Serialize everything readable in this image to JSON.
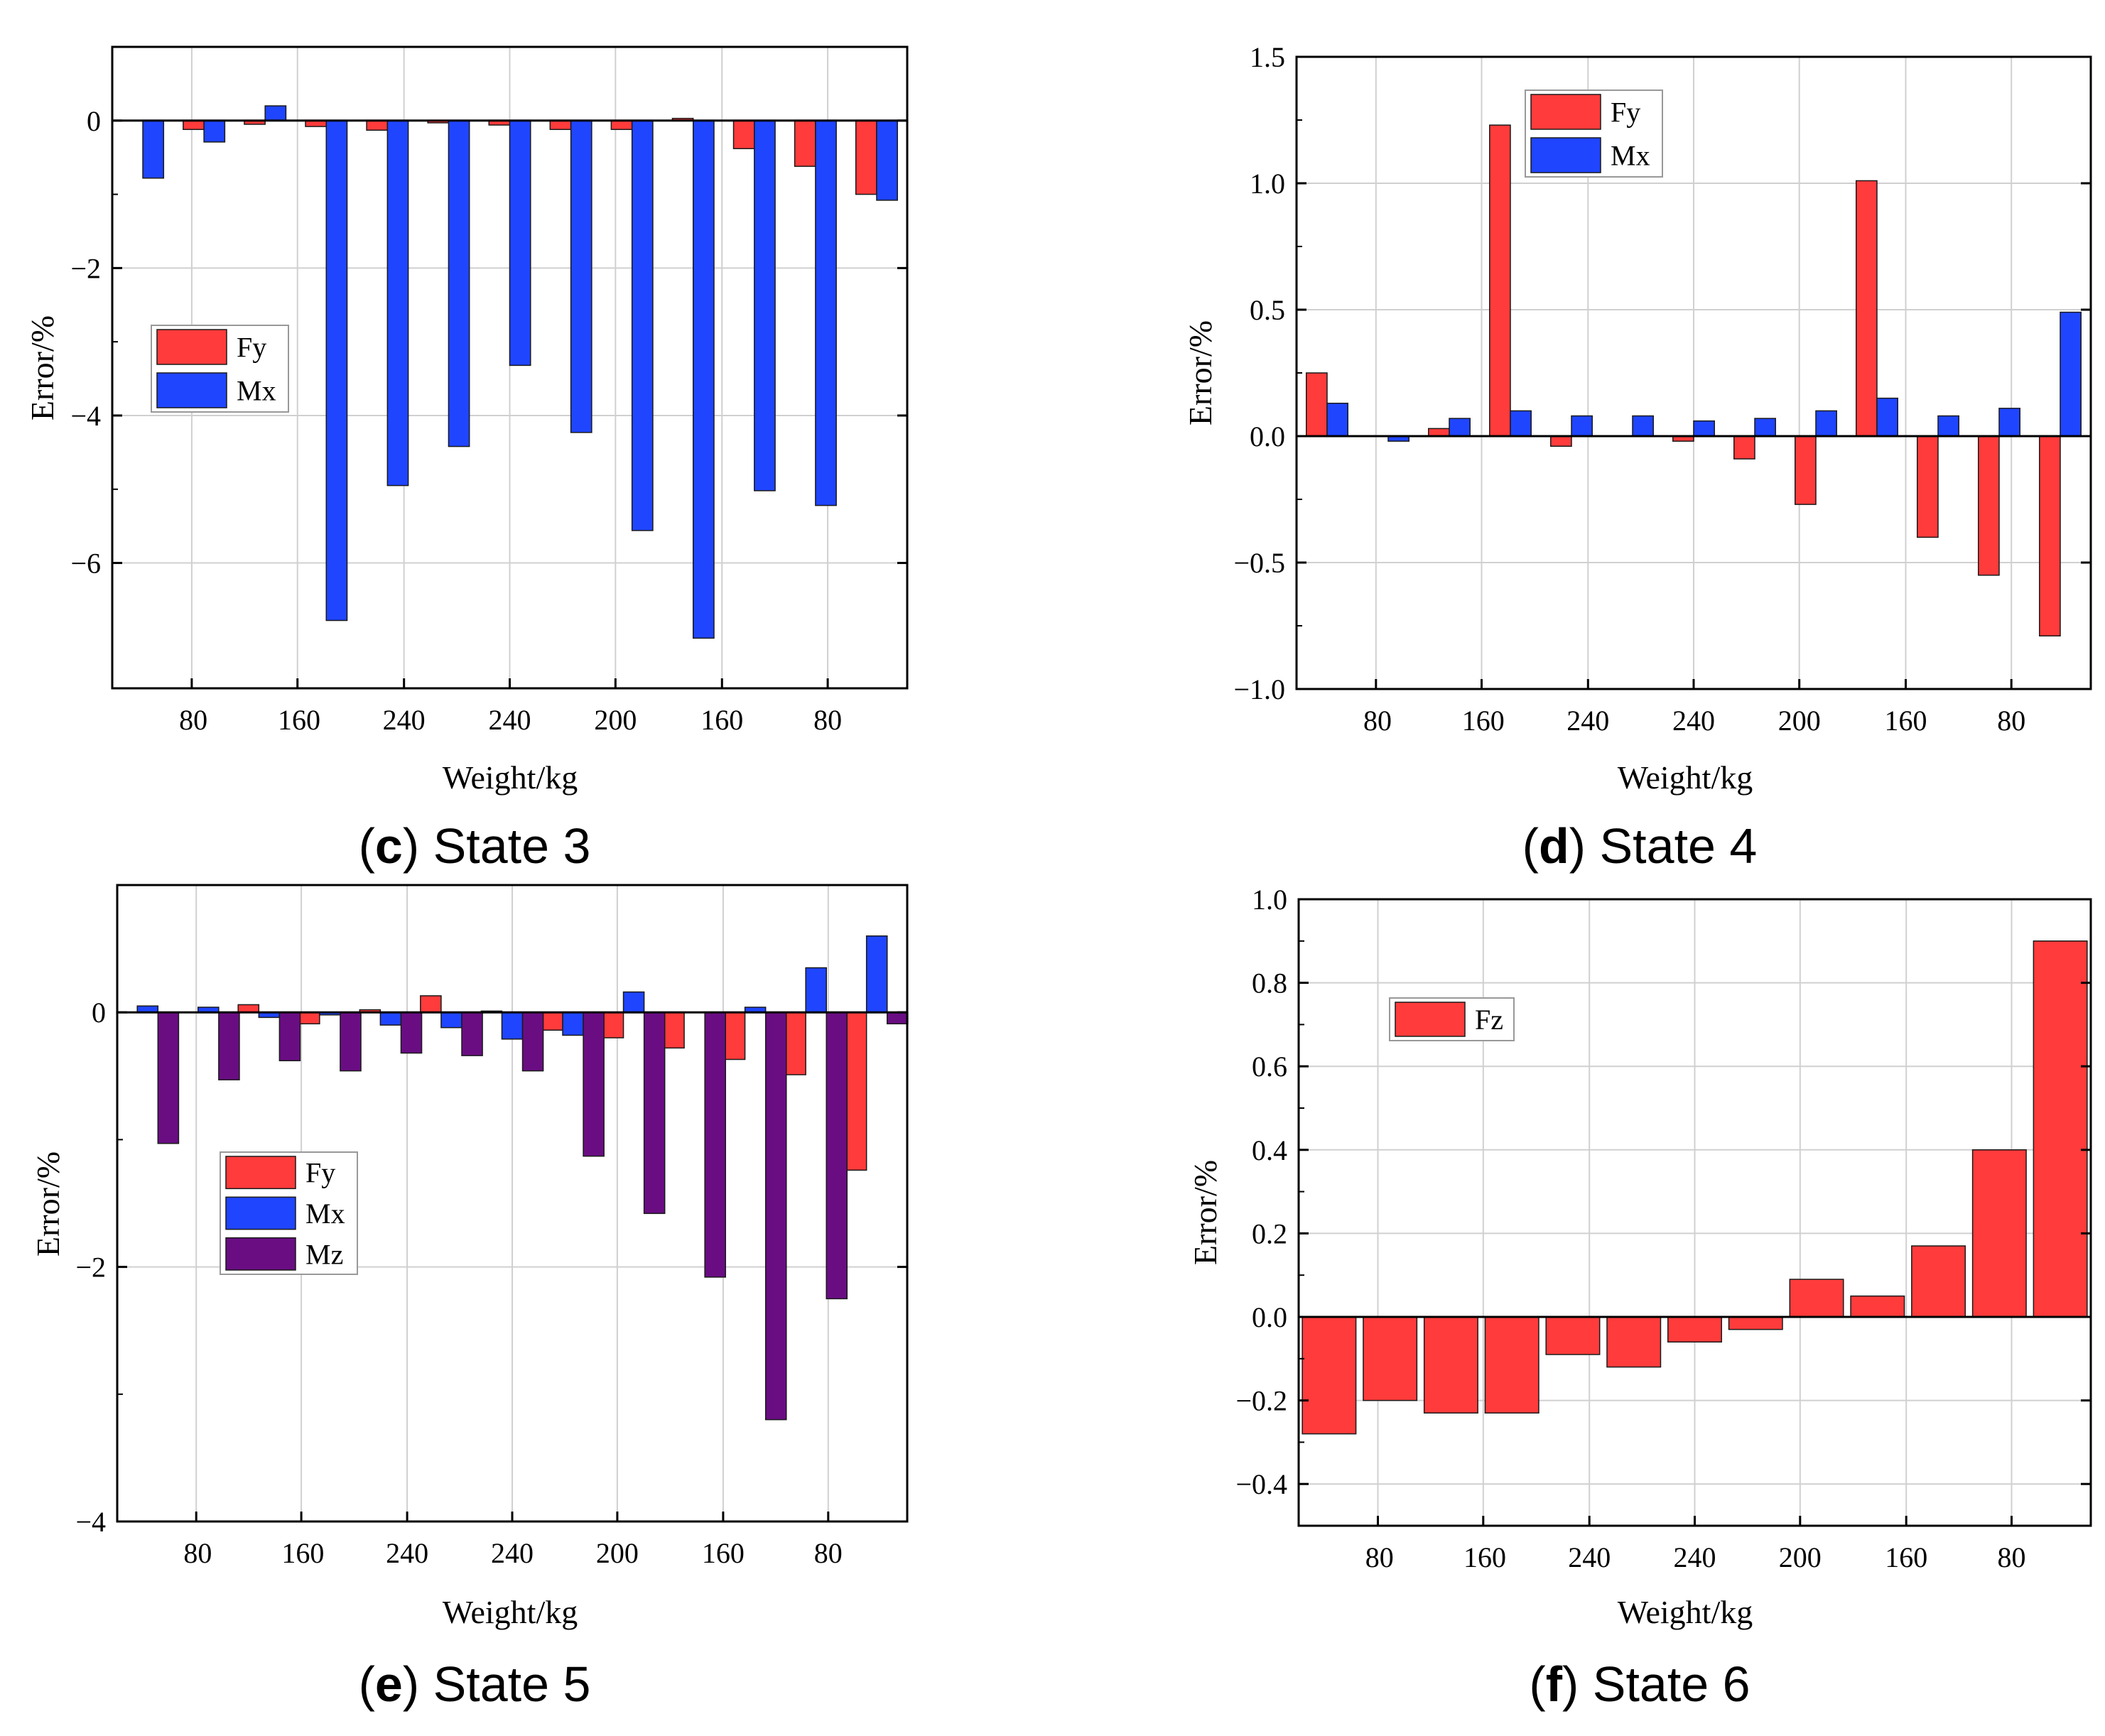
{
  "colors": {
    "Fy": "#ff3b3b",
    "Fz": "#ff3b3b",
    "Mx": "#1f45ff",
    "Mz": "#6a0d83",
    "axis": "#000000",
    "grid": "#d0d0d0"
  },
  "chart_data": [
    {
      "id": "c",
      "type": "bar",
      "title": "State 3",
      "caption": {
        "open": "(",
        "letter": "c",
        "close": ")",
        "text": " State 3"
      },
      "xlabel": "Weight/kg",
      "ylabel": "Error/%",
      "ylim": [
        -7.7,
        1.0
      ],
      "yticks": [
        0,
        -2,
        -4,
        -6
      ],
      "ytick_labels": [
        "0",
        "−2",
        "−4",
        "−6"
      ],
      "xtick_labels": [
        "80",
        "160",
        "240",
        "240",
        "200",
        "160",
        "80"
      ],
      "series": [
        {
          "name": "Fy",
          "values": [
            0,
            -0.12,
            -0.05,
            -0.08,
            -0.13,
            -0.03,
            -0.06,
            -0.12,
            -0.12,
            0.03,
            -0.38,
            -0.62,
            -1.0
          ]
        },
        {
          "name": "Mx",
          "values": [
            -0.78,
            -0.29,
            0.2,
            -6.78,
            -4.95,
            -4.42,
            -3.32,
            -4.23,
            -5.56,
            -7.02,
            -5.02,
            -5.22,
            -1.08
          ]
        }
      ],
      "legend": {
        "location": "center-left",
        "labels": [
          "Fy",
          "Mx"
        ]
      }
    },
    {
      "id": "d",
      "type": "bar",
      "title": "State 4",
      "caption": {
        "open": "(",
        "letter": "d",
        "close": ")",
        "text": " State 4"
      },
      "xlabel": "Weight/kg",
      "ylabel": "Error/%",
      "ylim": [
        -1.0,
        1.5
      ],
      "yticks": [
        1.5,
        1.0,
        0.5,
        0.0,
        -0.5,
        -1.0
      ],
      "ytick_labels": [
        "1.5",
        "1.0",
        "0.5",
        "0.0",
        "−0.5",
        "−1.0"
      ],
      "xtick_labels": [
        "80",
        "160",
        "240",
        "240",
        "200",
        "160",
        "80"
      ],
      "series": [
        {
          "name": "Fy",
          "values": [
            0.25,
            0,
            0.03,
            1.23,
            -0.04,
            0,
            -0.02,
            -0.09,
            -0.27,
            1.01,
            -0.4,
            -0.55,
            -0.79
          ]
        },
        {
          "name": "Mx",
          "values": [
            0.13,
            -0.02,
            0.07,
            0.1,
            0.08,
            0.08,
            0.06,
            0.07,
            0.1,
            0.15,
            0.08,
            0.11,
            0.49
          ]
        }
      ],
      "legend": {
        "location": "top-left",
        "labels": [
          "Fy",
          "Mx"
        ]
      }
    },
    {
      "id": "e",
      "type": "bar",
      "title": "State 5",
      "caption": {
        "open": "(",
        "letter": "e",
        "close": ")",
        "text": " State 5"
      },
      "xlabel": "Weight/kg",
      "ylabel": "Error/%",
      "ylim": [
        -4.0,
        1.0
      ],
      "yticks": [
        0,
        -2,
        -4
      ],
      "ytick_labels": [
        "0",
        "−2",
        "−4"
      ],
      "xtick_labels": [
        "80",
        "160",
        "240",
        "240",
        "200",
        "160",
        "80"
      ],
      "series": [
        {
          "name": "Fy",
          "values": [
            0,
            0,
            0.06,
            -0.09,
            0.02,
            0.13,
            0.01,
            -0.14,
            -0.2,
            -0.28,
            -0.37,
            -0.49,
            -1.24
          ]
        },
        {
          "name": "Mx",
          "values": [
            0.05,
            0.04,
            -0.04,
            -0.02,
            -0.1,
            -0.12,
            -0.21,
            -0.18,
            0.16,
            0,
            0.04,
            0.35,
            0.6
          ]
        },
        {
          "name": "Mz",
          "values": [
            -1.03,
            -0.53,
            -0.38,
            -0.46,
            -0.32,
            -0.34,
            -0.46,
            -1.13,
            -1.58,
            -2.08,
            -3.2,
            -2.25,
            -0.09
          ]
        }
      ],
      "legend": {
        "location": "center-left",
        "labels": [
          "Fy",
          "Mx",
          "Mz"
        ]
      }
    },
    {
      "id": "f",
      "type": "bar",
      "title": "State 6",
      "caption": {
        "open": "(",
        "letter": "f",
        "close": ")",
        "text": " State 6"
      },
      "xlabel": "Weight/kg",
      "ylabel": "Error/%",
      "ylim": [
        -0.5,
        1.0
      ],
      "yticks": [
        1.0,
        0.8,
        0.6,
        0.4,
        0.2,
        0.0,
        -0.2,
        -0.4
      ],
      "ytick_labels": [
        "1.0",
        "0.8",
        "0.6",
        "0.4",
        "0.2",
        "0.0",
        "−0.2",
        "−0.4"
      ],
      "xtick_labels": [
        "80",
        "160",
        "240",
        "240",
        "200",
        "160",
        "80"
      ],
      "series": [
        {
          "name": "Fz",
          "values": [
            -0.28,
            -0.2,
            -0.23,
            -0.23,
            -0.09,
            -0.12,
            -0.06,
            -0.03,
            0.09,
            0.05,
            0.17,
            0.4,
            0.9
          ]
        }
      ],
      "legend": {
        "location": "top-left",
        "labels": [
          "Fz"
        ]
      }
    }
  ]
}
